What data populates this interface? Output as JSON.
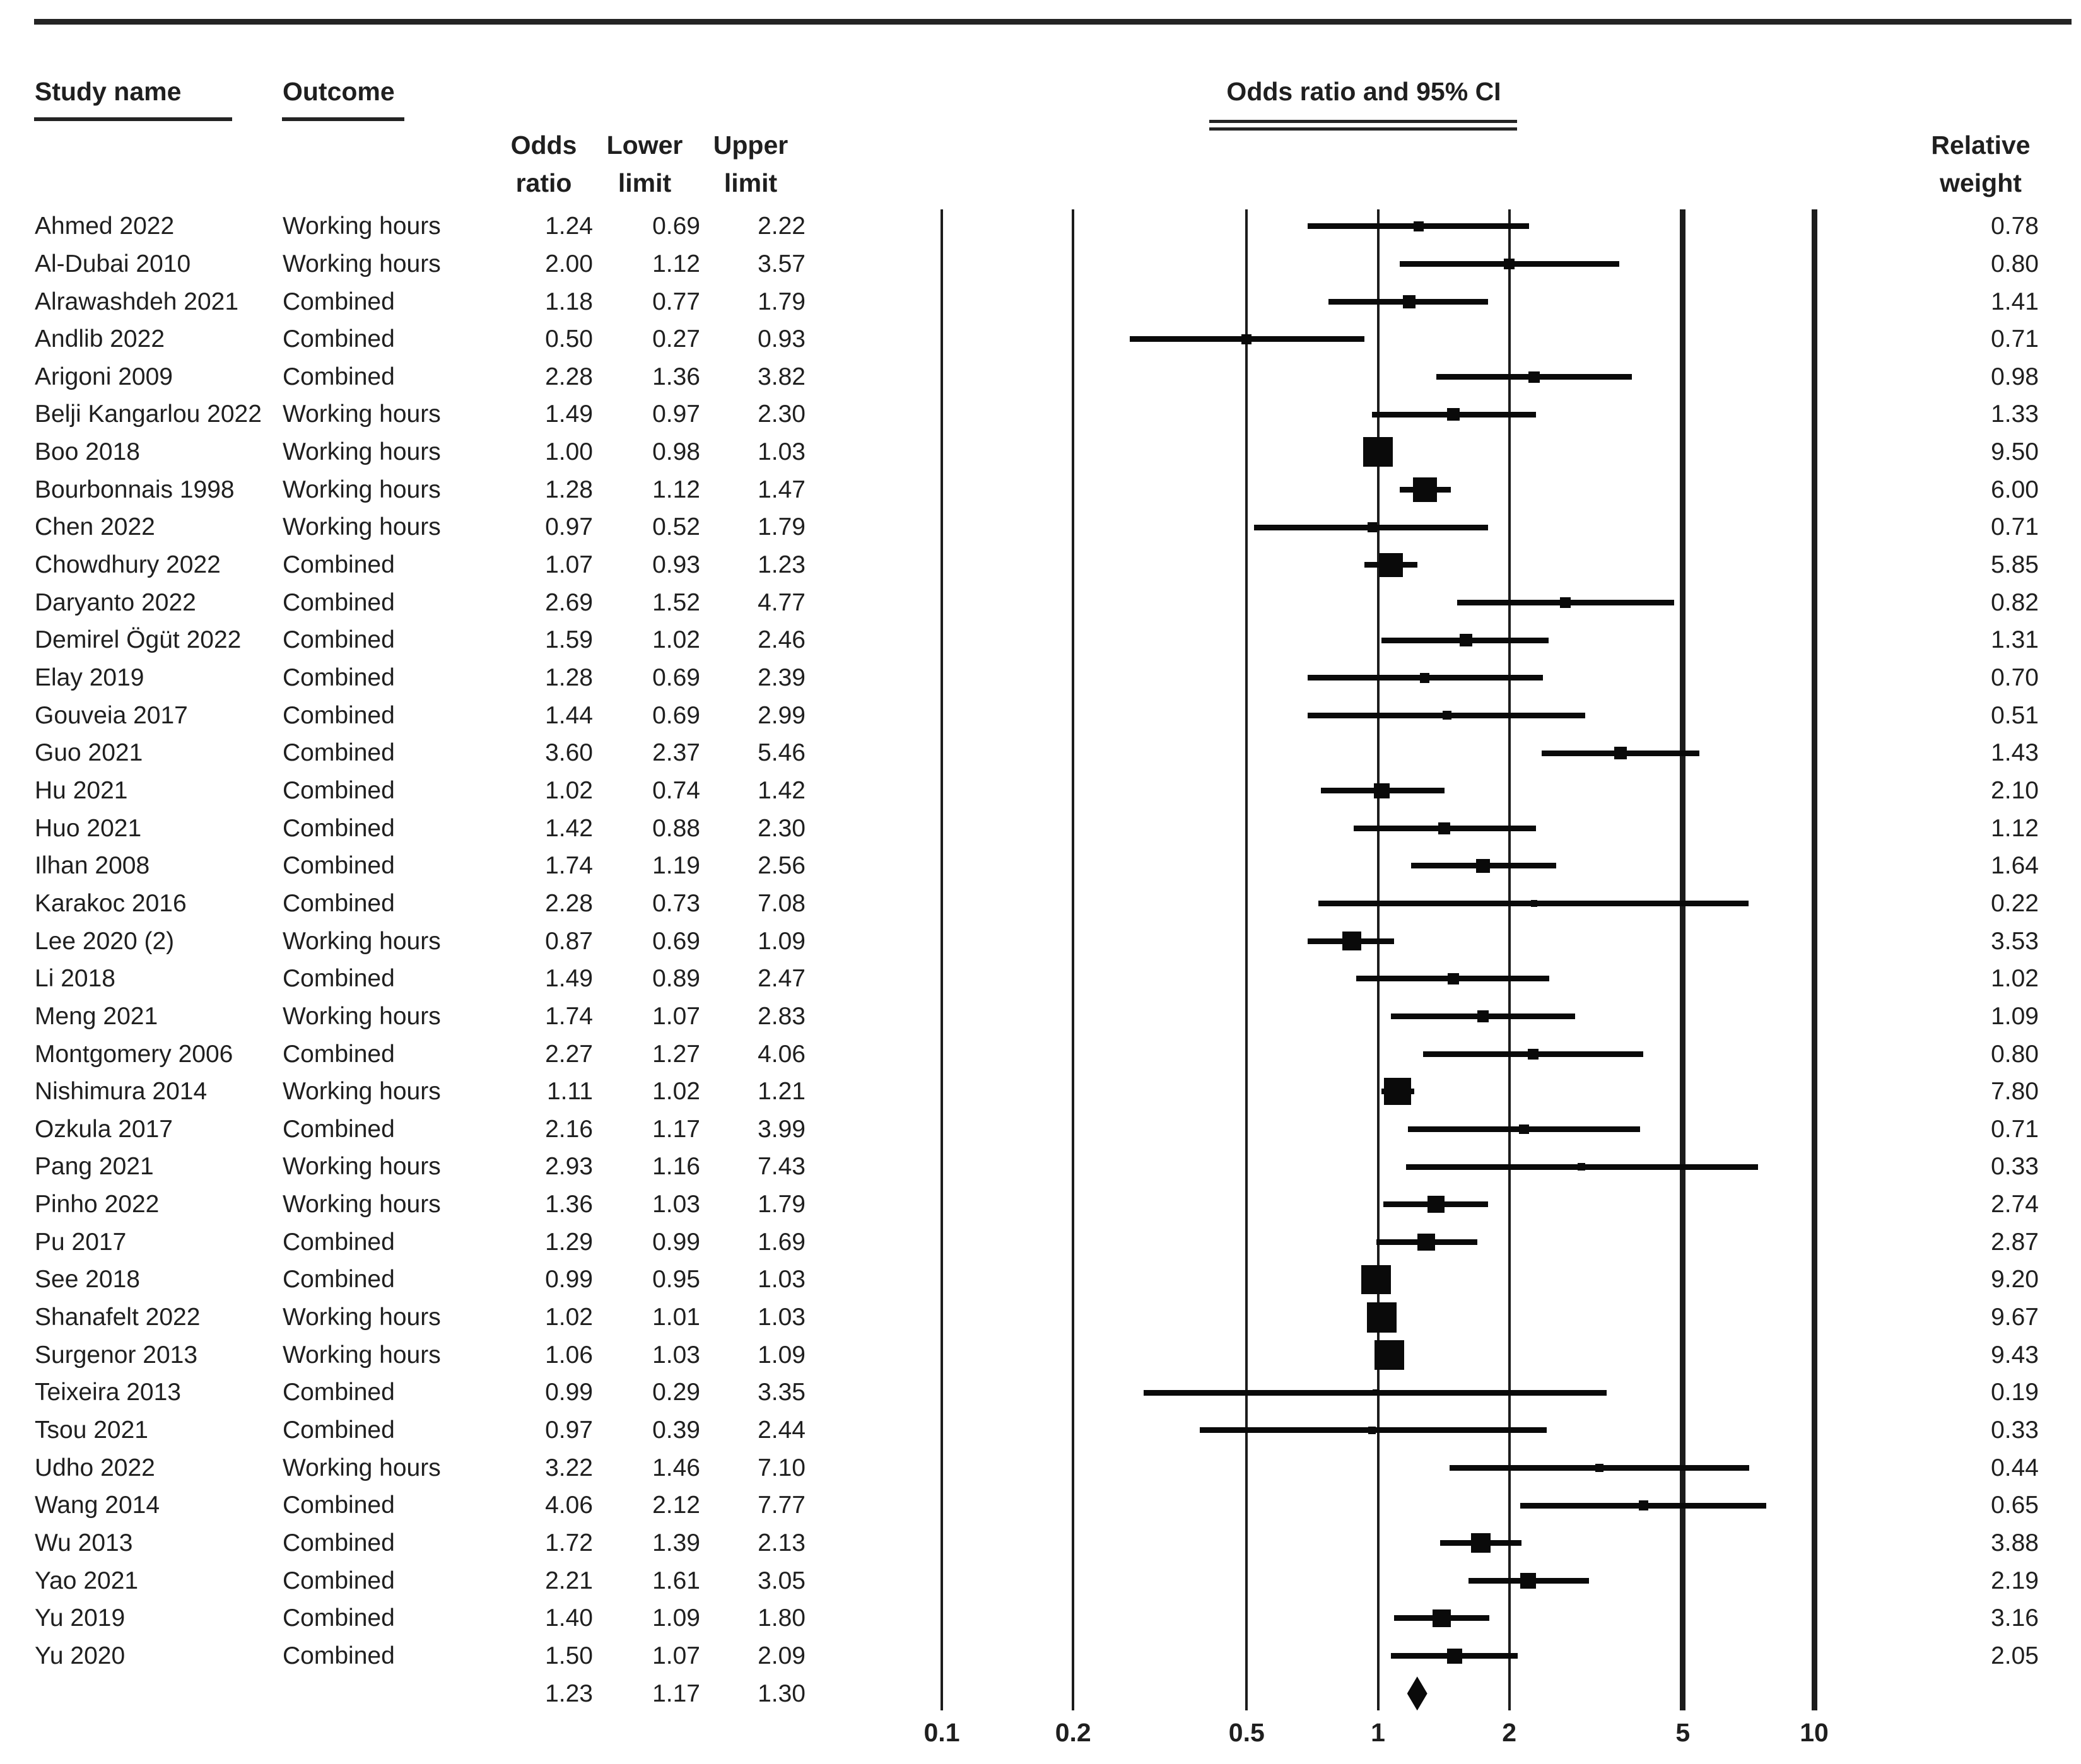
{
  "page_title": "Forest plot — Odds ratio and 95% CI",
  "columns": {
    "study": "Study name",
    "outcome": "Outcome",
    "odds_ratio": "Odds ratio",
    "lower_limit": "Lower limit",
    "upper_limit": "Upper limit",
    "relative_weight": "Relative weight",
    "plot_title": "Odds ratio and 95% CI"
  },
  "colors": {
    "ink": "#0a0a0a",
    "text": "#1f1f1f",
    "background": "#ffffff"
  },
  "chart_data": {
    "type": "scatter",
    "subtype": "forest-plot",
    "title": "Odds ratio and 95% CI",
    "x_scale": "log",
    "x_ticks": [
      "0.1",
      "0.2",
      "0.5",
      "1",
      "2",
      "5",
      "10"
    ],
    "x_range": [
      0.1,
      10
    ],
    "grid": "vertical-reference-lines",
    "legend_position": "none",
    "studies": [
      {
        "study": "Ahmed 2022",
        "outcome": "Working hours",
        "or": "1.24",
        "lo": "0.69",
        "hi": "2.22",
        "weight": "0.78"
      },
      {
        "study": "Al-Dubai 2010",
        "outcome": "Working hours",
        "or": "2.00",
        "lo": "1.12",
        "hi": "3.57",
        "weight": "0.80"
      },
      {
        "study": "Alrawashdeh 2021",
        "outcome": "Combined",
        "or": "1.18",
        "lo": "0.77",
        "hi": "1.79",
        "weight": "1.41"
      },
      {
        "study": "Andlib 2022",
        "outcome": "Combined",
        "or": "0.50",
        "lo": "0.27",
        "hi": "0.93",
        "weight": "0.71"
      },
      {
        "study": "Arigoni 2009",
        "outcome": "Combined",
        "or": "2.28",
        "lo": "1.36",
        "hi": "3.82",
        "weight": "0.98"
      },
      {
        "study": "Belji Kangarlou 2022",
        "outcome": "Working hours",
        "or": "1.49",
        "lo": "0.97",
        "hi": "2.30",
        "weight": "1.33"
      },
      {
        "study": "Boo 2018",
        "outcome": "Working hours",
        "or": "1.00",
        "lo": "0.98",
        "hi": "1.03",
        "weight": "9.50"
      },
      {
        "study": "Bourbonnais 1998",
        "outcome": "Working hours",
        "or": "1.28",
        "lo": "1.12",
        "hi": "1.47",
        "weight": "6.00"
      },
      {
        "study": "Chen 2022",
        "outcome": "Working hours",
        "or": "0.97",
        "lo": "0.52",
        "hi": "1.79",
        "weight": "0.71"
      },
      {
        "study": "Chowdhury 2022",
        "outcome": "Combined",
        "or": "1.07",
        "lo": "0.93",
        "hi": "1.23",
        "weight": "5.85"
      },
      {
        "study": "Daryanto 2022",
        "outcome": "Combined",
        "or": "2.69",
        "lo": "1.52",
        "hi": "4.77",
        "weight": "0.82"
      },
      {
        "study": "Demirel Ögüt 2022",
        "outcome": "Combined",
        "or": "1.59",
        "lo": "1.02",
        "hi": "2.46",
        "weight": "1.31"
      },
      {
        "study": "Elay 2019",
        "outcome": "Combined",
        "or": "1.28",
        "lo": "0.69",
        "hi": "2.39",
        "weight": "0.70"
      },
      {
        "study": "Gouveia 2017",
        "outcome": "Combined",
        "or": "1.44",
        "lo": "0.69",
        "hi": "2.99",
        "weight": "0.51"
      },
      {
        "study": "Guo 2021",
        "outcome": "Combined",
        "or": "3.60",
        "lo": "2.37",
        "hi": "5.46",
        "weight": "1.43"
      },
      {
        "study": "Hu 2021",
        "outcome": "Combined",
        "or": "1.02",
        "lo": "0.74",
        "hi": "1.42",
        "weight": "2.10"
      },
      {
        "study": "Huo 2021",
        "outcome": "Combined",
        "or": "1.42",
        "lo": "0.88",
        "hi": "2.30",
        "weight": "1.12"
      },
      {
        "study": "Ilhan 2008",
        "outcome": "Combined",
        "or": "1.74",
        "lo": "1.19",
        "hi": "2.56",
        "weight": "1.64"
      },
      {
        "study": "Karakoc 2016",
        "outcome": "Combined",
        "or": "2.28",
        "lo": "0.73",
        "hi": "7.08",
        "weight": "0.22"
      },
      {
        "study": "Lee 2020 (2)",
        "outcome": "Working hours",
        "or": "0.87",
        "lo": "0.69",
        "hi": "1.09",
        "weight": "3.53"
      },
      {
        "study": "Li 2018",
        "outcome": "Combined",
        "or": "1.49",
        "lo": "0.89",
        "hi": "2.47",
        "weight": "1.02"
      },
      {
        "study": "Meng 2021",
        "outcome": "Working hours",
        "or": "1.74",
        "lo": "1.07",
        "hi": "2.83",
        "weight": "1.09"
      },
      {
        "study": "Montgomery 2006",
        "outcome": "Combined",
        "or": "2.27",
        "lo": "1.27",
        "hi": "4.06",
        "weight": "0.80"
      },
      {
        "study": "Nishimura 2014",
        "outcome": "Working hours",
        "or": "1.11",
        "lo": "1.02",
        "hi": "1.21",
        "weight": "7.80"
      },
      {
        "study": "Ozkula 2017",
        "outcome": "Combined",
        "or": "2.16",
        "lo": "1.17",
        "hi": "3.99",
        "weight": "0.71"
      },
      {
        "study": "Pang 2021",
        "outcome": "Working hours",
        "or": "2.93",
        "lo": "1.16",
        "hi": "7.43",
        "weight": "0.33"
      },
      {
        "study": "Pinho 2022",
        "outcome": "Working hours",
        "or": "1.36",
        "lo": "1.03",
        "hi": "1.79",
        "weight": "2.74"
      },
      {
        "study": "Pu 2017",
        "outcome": "Combined",
        "or": "1.29",
        "lo": "0.99",
        "hi": "1.69",
        "weight": "2.87"
      },
      {
        "study": "See 2018",
        "outcome": "Combined",
        "or": "0.99",
        "lo": "0.95",
        "hi": "1.03",
        "weight": "9.20"
      },
      {
        "study": "Shanafelt 2022",
        "outcome": "Working hours",
        "or": "1.02",
        "lo": "1.01",
        "hi": "1.03",
        "weight": "9.67"
      },
      {
        "study": "Surgenor 2013",
        "outcome": "Working hours",
        "or": "1.06",
        "lo": "1.03",
        "hi": "1.09",
        "weight": "9.43"
      },
      {
        "study": "Teixeira 2013",
        "outcome": "Combined",
        "or": "0.99",
        "lo": "0.29",
        "hi": "3.35",
        "weight": "0.19"
      },
      {
        "study": "Tsou 2021",
        "outcome": "Combined",
        "or": "0.97",
        "lo": "0.39",
        "hi": "2.44",
        "weight": "0.33"
      },
      {
        "study": "Udho 2022",
        "outcome": "Working hours",
        "or": "3.22",
        "lo": "1.46",
        "hi": "7.10",
        "weight": "0.44"
      },
      {
        "study": "Wang 2014",
        "outcome": "Combined",
        "or": "4.06",
        "lo": "2.12",
        "hi": "7.77",
        "weight": "0.65"
      },
      {
        "study": "Wu 2013",
        "outcome": "Combined",
        "or": "1.72",
        "lo": "1.39",
        "hi": "2.13",
        "weight": "3.88"
      },
      {
        "study": "Yao 2021",
        "outcome": "Combined",
        "or": "2.21",
        "lo": "1.61",
        "hi": "3.05",
        "weight": "2.19"
      },
      {
        "study": "Yu 2019",
        "outcome": "Combined",
        "or": "1.40",
        "lo": "1.09",
        "hi": "1.80",
        "weight": "3.16"
      },
      {
        "study": "Yu 2020",
        "outcome": "Combined",
        "or": "1.50",
        "lo": "1.07",
        "hi": "2.09",
        "weight": "2.05"
      }
    ],
    "overall": {
      "or": "1.23",
      "lo": "1.17",
      "hi": "1.30"
    }
  }
}
